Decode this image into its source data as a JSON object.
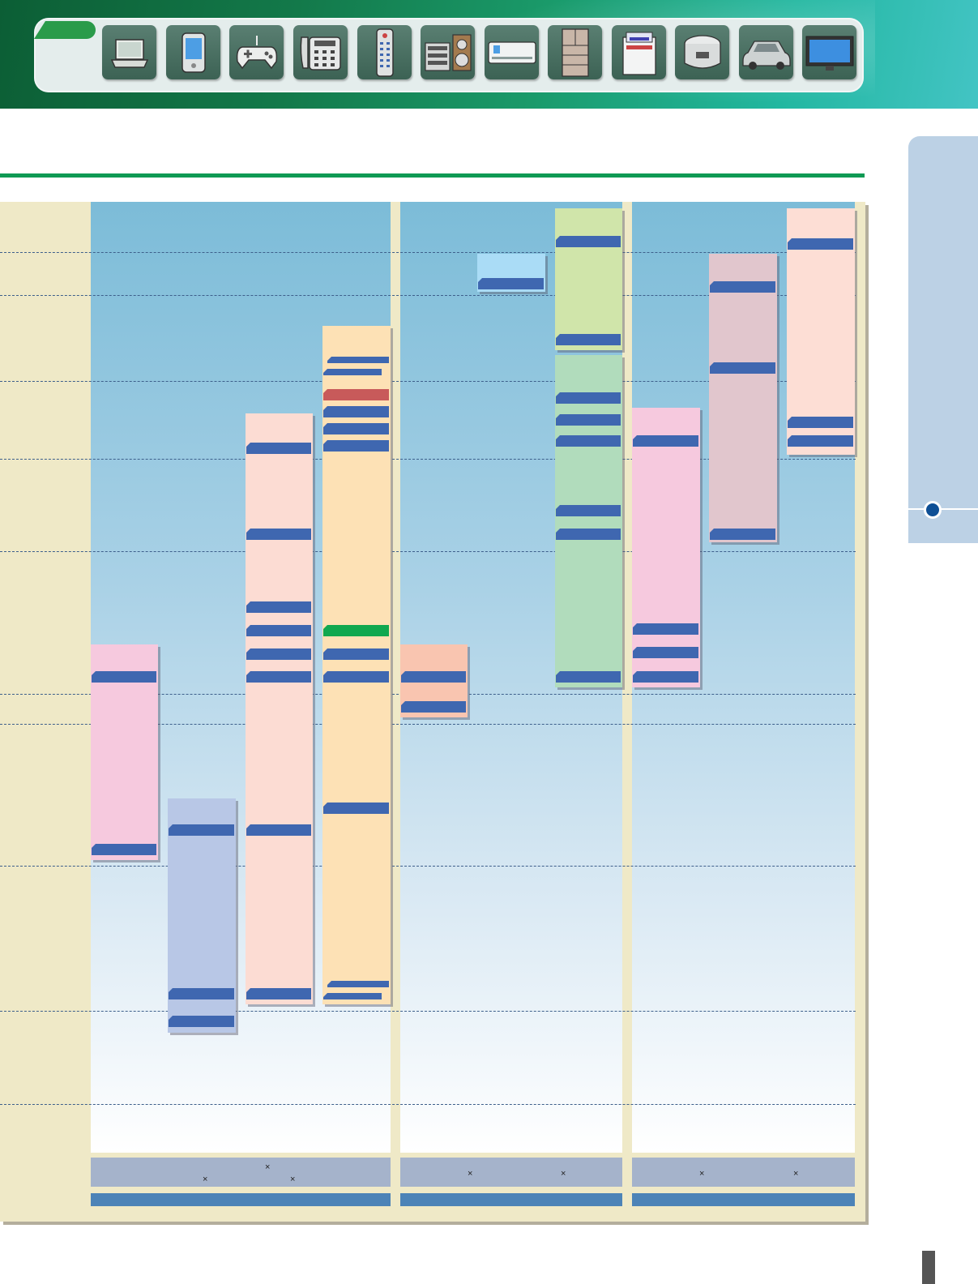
{
  "header": {
    "device_icons": [
      "laptop-icon",
      "pda-icon",
      "game-controller-icon",
      "telephone-icon",
      "remote-control-icon",
      "audio-system-icon",
      "air-conditioner-icon",
      "refrigerator-icon",
      "printer-icon",
      "rice-cooker-icon",
      "car-icon",
      "flat-tv-icon"
    ]
  },
  "colors": {
    "banner": "#13794a",
    "rule": "#0f9a54",
    "panel": "#efe9c7",
    "tag": "#3f67b0",
    "tag_red": "#c85a5a",
    "tag_green": "#10a84f",
    "side_tab": "#bcd1e5",
    "side_dot": "#0e4f95",
    "bands": {
      "pink": "#f6c9de",
      "periwinkle": "#b8c7e6",
      "salmon_light": "#fcdcd3",
      "peach": "#fde1b5",
      "salmon": "#f9c5b0",
      "sky": "#aadcf6",
      "lime": "#d0e5aa",
      "mint": "#b1dcbc",
      "mauve": "#e1c6cd",
      "rose_light": "#fdded5"
    }
  },
  "legend": {
    "multiply_sign": "×"
  }
}
